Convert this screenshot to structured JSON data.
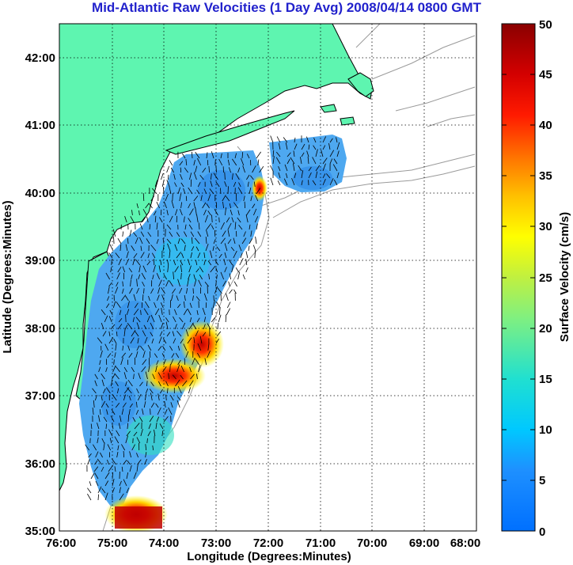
{
  "title": "Mid-Atlantic Raw Velocities (1 Day Avg) 2008/04/14 0800 GMT",
  "xlabel": "Longitude (Degrees:Minutes)",
  "ylabel": "Latitude (Degrees:Minutes)",
  "x_ticks": [
    "76:00",
    "75:00",
    "74:00",
    "73:00",
    "72:00",
    "71:00",
    "70:00",
    "69:00",
    "68:00"
  ],
  "y_ticks": [
    "35:00",
    "36:00",
    "37:00",
    "38:00",
    "39:00",
    "40:00",
    "41:00",
    "42:00"
  ],
  "colorbar": {
    "label": "Surface Velocity (cm/s)",
    "ticks": [
      "0",
      "5",
      "10",
      "15",
      "20",
      "25",
      "30",
      "35",
      "40",
      "45",
      "50"
    ]
  },
  "colors": {
    "title": "#2222cc",
    "land": "#5ef5b0",
    "ocean": "#ffffff",
    "coastline": "#000000",
    "bathymetry": "#9a9a9a",
    "grid": "#000000"
  },
  "chart_data": {
    "type": "heatmap",
    "title": "Mid-Atlantic Raw Velocities (1 Day Avg) 2008/04/14 0800 GMT",
    "xlabel": "Longitude (Degrees:Minutes)",
    "ylabel": "Latitude (Degrees:Minutes)",
    "xlim": [
      -76,
      -68
    ],
    "ylim": [
      35,
      42.5
    ],
    "grid": true,
    "colorbar_range": [
      0,
      50
    ],
    "colorbar_label": "Surface Velocity (cm/s)",
    "colormap": "jet",
    "speed_hotspots": [
      {
        "lon": -72.9,
        "lat": 38.0,
        "speed": 45
      },
      {
        "lon": -73.7,
        "lat": 37.3,
        "speed": 42
      },
      {
        "lon": -72.1,
        "lat": 40.0,
        "speed": 40
      },
      {
        "lon": -74.6,
        "lat": 35.2,
        "speed": 48
      },
      {
        "lon": -74.0,
        "lat": 37.1,
        "speed": 25
      },
      {
        "lon": -73.2,
        "lat": 38.8,
        "speed": 18
      }
    ],
    "typical_speed_range": [
      3,
      15
    ]
  }
}
